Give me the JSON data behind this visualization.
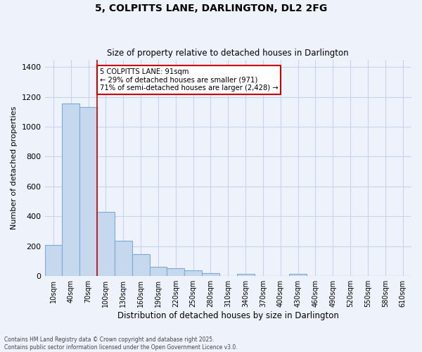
{
  "title": "5, COLPITTS LANE, DARLINGTON, DL2 2FG",
  "subtitle": "Size of property relative to detached houses in Darlington",
  "xlabel": "Distribution of detached houses by size in Darlington",
  "ylabel": "Number of detached properties",
  "categories": [
    "10sqm",
    "40sqm",
    "70sqm",
    "100sqm",
    "130sqm",
    "160sqm",
    "190sqm",
    "220sqm",
    "250sqm",
    "280sqm",
    "310sqm",
    "340sqm",
    "370sqm",
    "400sqm",
    "430sqm",
    "460sqm",
    "490sqm",
    "520sqm",
    "550sqm",
    "580sqm",
    "610sqm"
  ],
  "values": [
    210,
    1155,
    1130,
    430,
    235,
    145,
    60,
    55,
    38,
    20,
    0,
    15,
    0,
    0,
    15,
    0,
    0,
    0,
    0,
    0,
    0
  ],
  "bar_color": "#c5d8ee",
  "bar_edge_color": "#7badd4",
  "grid_color": "#c8d4ee",
  "background_color": "#eef2fa",
  "vline_x": 2.5,
  "vline_color": "#cc0000",
  "annotation_text": "5 COLPITTS LANE: 91sqm\n← 29% of detached houses are smaller (971)\n71% of semi-detached houses are larger (2,428) →",
  "annotation_box_color": "#ffffff",
  "annotation_edge_color": "#cc0000",
  "ylim": [
    0,
    1450
  ],
  "yticks": [
    0,
    200,
    400,
    600,
    800,
    1000,
    1200,
    1400
  ],
  "footer_line1": "Contains HM Land Registry data © Crown copyright and database right 2025.",
  "footer_line2": "Contains public sector information licensed under the Open Government Licence v3.0."
}
